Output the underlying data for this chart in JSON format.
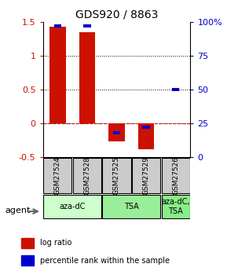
{
  "title": "GDS920 / 8863",
  "samples": [
    "GSM27524",
    "GSM27528",
    "GSM27525",
    "GSM27529",
    "GSM27526"
  ],
  "log_ratios": [
    1.43,
    1.35,
    -0.27,
    -0.38,
    0.0
  ],
  "percentile_ranks": [
    0.97,
    0.97,
    0.18,
    0.22,
    0.5
  ],
  "ylim": [
    -0.5,
    1.5
  ],
  "bar_width": 0.55,
  "red_color": "#cc1100",
  "blue_color": "#0000cc",
  "agents": [
    {
      "label": "aza-dC",
      "samples": [
        "GSM27524",
        "GSM27528"
      ],
      "color": "#ccffcc"
    },
    {
      "label": "TSA",
      "samples": [
        "GSM27525",
        "GSM27529"
      ],
      "color": "#99ee99"
    },
    {
      "label": "aza-dC,\nTSA",
      "samples": [
        "GSM27526"
      ],
      "color": "#88ee88"
    }
  ],
  "grid_lines": [
    0.0,
    0.5,
    1.0
  ],
  "left_yticks": [
    -0.5,
    0,
    0.5,
    1,
    1.5
  ],
  "right_ytick_positions": [
    -0.5,
    0,
    0.5,
    1,
    1.5
  ],
  "right_ytick_labels": [
    "0",
    "25",
    "50",
    "75",
    "100%"
  ],
  "agent_label": "agent",
  "legend_items": [
    {
      "color": "#cc1100",
      "label": "log ratio"
    },
    {
      "color": "#0000cc",
      "label": "percentile rank within the sample"
    }
  ],
  "percentile_bar_height": 0.05,
  "blue_bar_width": 0.25
}
